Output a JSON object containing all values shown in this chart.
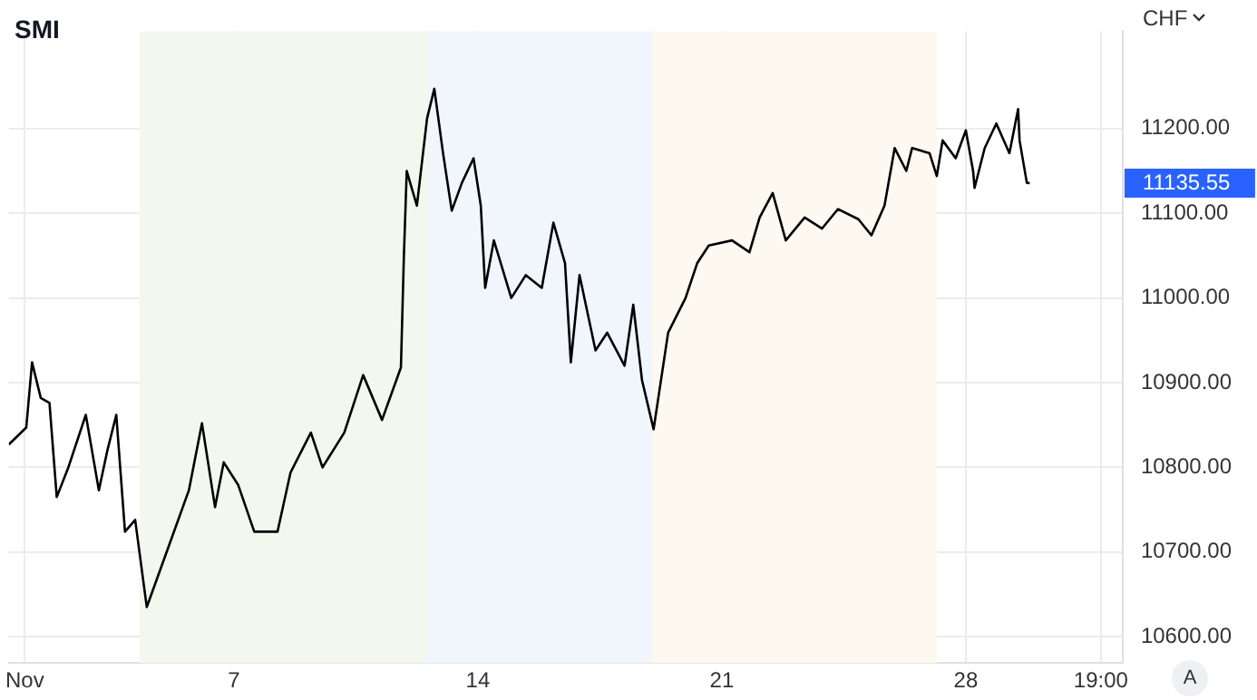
{
  "chart_data": {
    "type": "line",
    "title": "SMI",
    "ylabel": "CHF",
    "x": [
      "--10-31T13:00",
      "--11-01T01:00",
      "--11-01T05:00",
      "--11-01T11:00",
      "--11-01T17:00",
      "--11-01T22:00",
      "--11-02T06:00",
      "--11-02T18:00",
      "--11-03T03:00",
      "--11-03T09:00",
      "--11-03T15:00",
      "--11-03T21:00",
      "--11-04T04:00",
      "--11-04T12:00",
      "--11-05T04:00",
      "--11-05T17:00",
      "--11-06T02:00",
      "--11-06T11:00",
      "--11-06T17:00",
      "--11-07T03:00",
      "--11-07T14:00",
      "--11-08T06:00",
      "--11-08T15:00",
      "--11-09T05:00",
      "--11-09T13:00",
      "--11-10T04:00",
      "--11-10T17:00",
      "--11-11T06:00",
      "--11-11T19:00",
      "--11-11T21:00",
      "--11-11T23:00",
      "--11-12T06:00",
      "--11-12T13:00",
      "--11-12T18:00",
      "--11-13T00:00",
      "--11-13T06:00",
      "--11-13T13:00",
      "--11-13T21:00",
      "--11-14T02:00",
      "--11-14T05:00",
      "--11-14T11:00",
      "--11-14T23:00",
      "--11-15T09:00",
      "--11-15T20:00",
      "--11-16T04:00",
      "--11-16T12:00",
      "--11-16T16:00",
      "--11-16T22:00",
      "--11-17T09:00",
      "--11-17T17:00",
      "--11-18T05:00",
      "--11-18T11:00",
      "--11-18T17:00",
      "--11-19T01:00",
      "--11-19T11:00",
      "--11-19T23:00",
      "--11-20T07:00",
      "--11-20T15:00",
      "--11-21T07:00",
      "--11-21T19:00",
      "--11-22T02:00",
      "--11-22T11:00",
      "--11-22T20:00",
      "--11-23T09:00",
      "--11-23T21:00",
      "--11-24T08:00",
      "--11-24T22:00",
      "--11-25T07:00",
      "--11-25T16:00",
      "--11-25T23:00",
      "--11-26T07:00",
      "--11-26T11:00",
      "--11-26T23:00",
      "--11-27T04:00",
      "--11-27T08:00",
      "--11-27T17:00",
      "--11-28T00:00",
      "--11-28T05:00",
      "--11-28T06:00",
      "--11-28T13:00",
      "--11-28T21:00",
      "--11-29T06:00",
      "--11-29T12:00",
      "--11-29T13:00",
      "--11-29T18:00",
      "--11-29T20:00"
    ],
    "series": [
      {
        "color": "#000000",
        "values": [
          10827,
          10847,
          10924,
          10882,
          10876,
          10765,
          10800,
          10862,
          10773,
          10821,
          10862,
          10724,
          10738,
          10635,
          10711,
          10773,
          10852,
          10753,
          10806,
          10779,
          10724,
          10724,
          10794,
          10841,
          10800,
          10841,
          10909,
          10856,
          10918,
          11047,
          11150,
          11109,
          11212,
          11247,
          11171,
          11103,
          11136,
          11165,
          11109,
          11012,
          11068,
          11000,
          11027,
          11012,
          11089,
          11041,
          10924,
          11027,
          10938,
          10959,
          10920,
          10992,
          10903,
          10845,
          10959,
          11000,
          11041,
          11062,
          11068,
          11054,
          11095,
          11124,
          11068,
          11095,
          11082,
          11105,
          11093,
          11074,
          11109,
          11177,
          11150,
          11177,
          11171,
          11144,
          11186,
          11165,
          11198,
          11150,
          11130,
          11177,
          11206,
          11171,
          11223,
          11186,
          11136,
          11135.55
        ]
      }
    ],
    "xlim": [
      "--10-31T13:00",
      "--12-02T12:00"
    ],
    "xticks": [
      {
        "value": "--11-01T00:00",
        "label": "Nov"
      },
      {
        "value": "--11-07T00:00",
        "label": "7"
      },
      {
        "value": "--11-14T00:00",
        "label": "14"
      },
      {
        "value": "--11-21T00:00",
        "label": "21"
      },
      {
        "value": "--11-28T00:00",
        "label": "28"
      },
      {
        "value": "--12-01T21:00",
        "label": "19:00"
      }
    ],
    "ylim": [
      10569,
      11315
    ],
    "yticks": [
      {
        "value": 10600,
        "label": "10600.00"
      },
      {
        "value": 10700,
        "label": "10700.00"
      },
      {
        "value": 10800,
        "label": "10800.00"
      },
      {
        "value": 10900,
        "label": "10900.00"
      },
      {
        "value": 11000,
        "label": "11000.00"
      },
      {
        "value": 11100,
        "label": "11100.00"
      },
      {
        "value": 11200,
        "label": "11200.00"
      }
    ],
    "bands": [
      {
        "axis": "x",
        "from": "--11-04T07:00",
        "to": "--11-12T19:00",
        "color": "#f3f8ef"
      },
      {
        "axis": "x",
        "from": "--11-12T13:00",
        "to": "--11-19T00:00",
        "color": "#f1f6fd"
      },
      {
        "axis": "x",
        "from": "--11-19T00:00",
        "to": "--11-27T04:00",
        "color": "#fdf8f0"
      }
    ],
    "annotations": [
      "11135.55",
      "A"
    ],
    "grid": true,
    "legend": false,
    "marker": "none",
    "line_style": "solid"
  }
}
